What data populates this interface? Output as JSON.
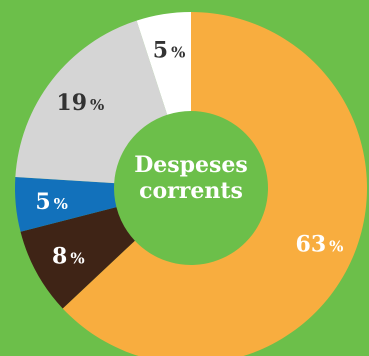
{
  "chart_data": {
    "type": "pie",
    "center_label_line1": "Despeses",
    "center_label_line2": "corrents",
    "background_color": "#6cbf4a",
    "slices": [
      {
        "value": 63,
        "label": "63",
        "unit": "%",
        "color": "#f8ad3f",
        "label_color": "#ffffff"
      },
      {
        "value": 8,
        "label": "8",
        "unit": "%",
        "color": "#3f2416",
        "label_color": "#ffffff"
      },
      {
        "value": 5,
        "label": "5",
        "unit": "%",
        "color": "#1271bb",
        "label_color": "#ffffff"
      },
      {
        "value": 19,
        "label": "19",
        "unit": "%",
        "color": "#d5d5d5",
        "label_color": "#333333"
      },
      {
        "value": 5,
        "label": "5",
        "unit": "%",
        "color": "#ffffff",
        "label_color": "#333333"
      }
    ]
  }
}
